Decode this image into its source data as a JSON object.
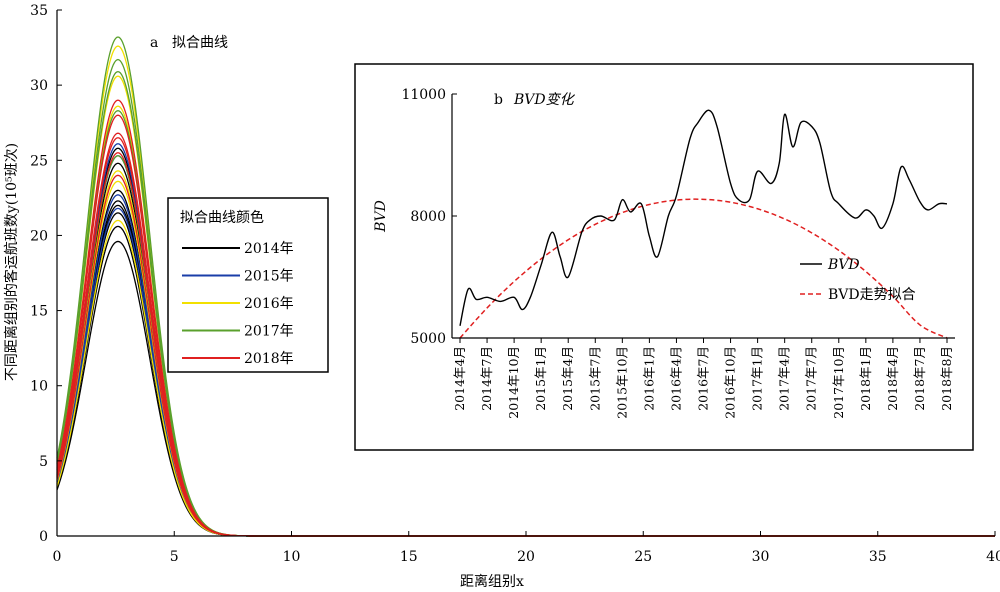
{
  "chart_data": [
    {
      "panel_label": "a",
      "title": "拟合曲线",
      "type": "line",
      "xlabel": "距离组别x",
      "ylabel": "不同距离组别的客运航班数y(10⁵班次)",
      "xlim": [
        0,
        40
      ],
      "ylim": [
        0,
        35
      ],
      "xticks": [
        "0",
        "5",
        "10",
        "15",
        "20",
        "25",
        "30",
        "35",
        "40"
      ],
      "yticks": [
        "0",
        "5",
        "10",
        "15",
        "20",
        "25",
        "30",
        "35"
      ],
      "legend_title": "拟合曲线颜色",
      "legend_position": "middle-left",
      "curve_model": "gaussian peak at x≈2.6, width≈1.35",
      "series": [
        {
          "name": "2014年",
          "color": "#000000",
          "peaks": [
            19.6,
            20.6,
            21.5,
            22.0,
            22.3,
            23.0,
            24.8,
            25.8
          ]
        },
        {
          "name": "2015年",
          "color": "#1a3ea8",
          "peaks": [
            21.8,
            22.7,
            25.3,
            26.1
          ]
        },
        {
          "name": "2016年",
          "color": "#f2e000",
          "peaks": [
            21.0,
            23.6,
            24.3,
            28.6,
            30.6,
            32.6
          ]
        },
        {
          "name": "2017年",
          "color": "#5aa02c",
          "peaks": [
            25.3,
            28.3,
            30.9,
            31.7,
            33.2
          ]
        },
        {
          "name": "2018年",
          "color": "#e02020",
          "peaks": [
            24.0,
            25.5,
            26.5,
            26.8,
            28.0,
            29.0
          ]
        }
      ]
    },
    {
      "panel_label": "b",
      "title": "BVD变化",
      "type": "line",
      "xlabel": "",
      "ylabel": "BVD",
      "ylim": [
        5000,
        11000
      ],
      "yticks": [
        "5000",
        "8000",
        "11000"
      ],
      "xticks": [
        "2014年4月",
        "2014年7月",
        "2014年10月",
        "2015年1月",
        "2015年4月",
        "2015年7月",
        "2015年10月",
        "2016年1月",
        "2016年4月",
        "2016年7月",
        "2016年10月",
        "2017年1月",
        "2017年4月",
        "2017年7月",
        "2017年10月",
        "2018年1月",
        "2018年4月",
        "2018年7月",
        "2018年8月"
      ],
      "legend_position": "middle-right",
      "series": [
        {
          "name": "BVD",
          "color": "#000000",
          "style": "solid",
          "x": [
            0,
            0.3,
            0.6,
            1,
            1.5,
            2,
            2.3,
            2.6,
            3,
            3.4,
            3.7,
            4,
            4.5,
            4.8,
            5.2,
            5.7,
            6,
            6.3,
            6.7,
            7,
            7.3,
            7.7,
            8,
            8.5,
            8.8,
            9.2,
            9.5,
            10,
            10.3,
            10.7,
            11,
            11.5,
            11.8,
            12,
            12.3,
            12.6,
            13,
            13.3,
            13.7,
            14,
            14.6,
            15,
            15.3,
            15.6,
            16,
            16.3,
            16.6,
            17,
            17.3,
            17.7,
            18
          ],
          "y": [
            5300,
            6200,
            5950,
            6000,
            5900,
            6000,
            5700,
            6000,
            6800,
            7600,
            7000,
            6500,
            7600,
            7900,
            8000,
            7900,
            8400,
            8100,
            8300,
            7500,
            7000,
            8000,
            8500,
            9900,
            10300,
            10600,
            10200,
            8800,
            8400,
            8400,
            9100,
            8800,
            9300,
            10500,
            9700,
            10300,
            10200,
            9800,
            8600,
            8300,
            7950,
            8150,
            8000,
            7700,
            8300,
            9200,
            8900,
            8350,
            8150,
            8300,
            8300
          ]
        },
        {
          "name": "BVD走势拟合",
          "color": "#e02020",
          "style": "dashed",
          "x": [
            0,
            1,
            2,
            3,
            4,
            5,
            6,
            7,
            8,
            9,
            10,
            11,
            12,
            13,
            14,
            15,
            16,
            17,
            18
          ],
          "y": [
            5000,
            5739,
            6388,
            6947,
            7416,
            7795,
            8084,
            8283,
            8392,
            8410,
            8339,
            8178,
            7927,
            7586,
            7155,
            6634,
            6023,
            5322,
            4531
          ]
        }
      ]
    }
  ]
}
